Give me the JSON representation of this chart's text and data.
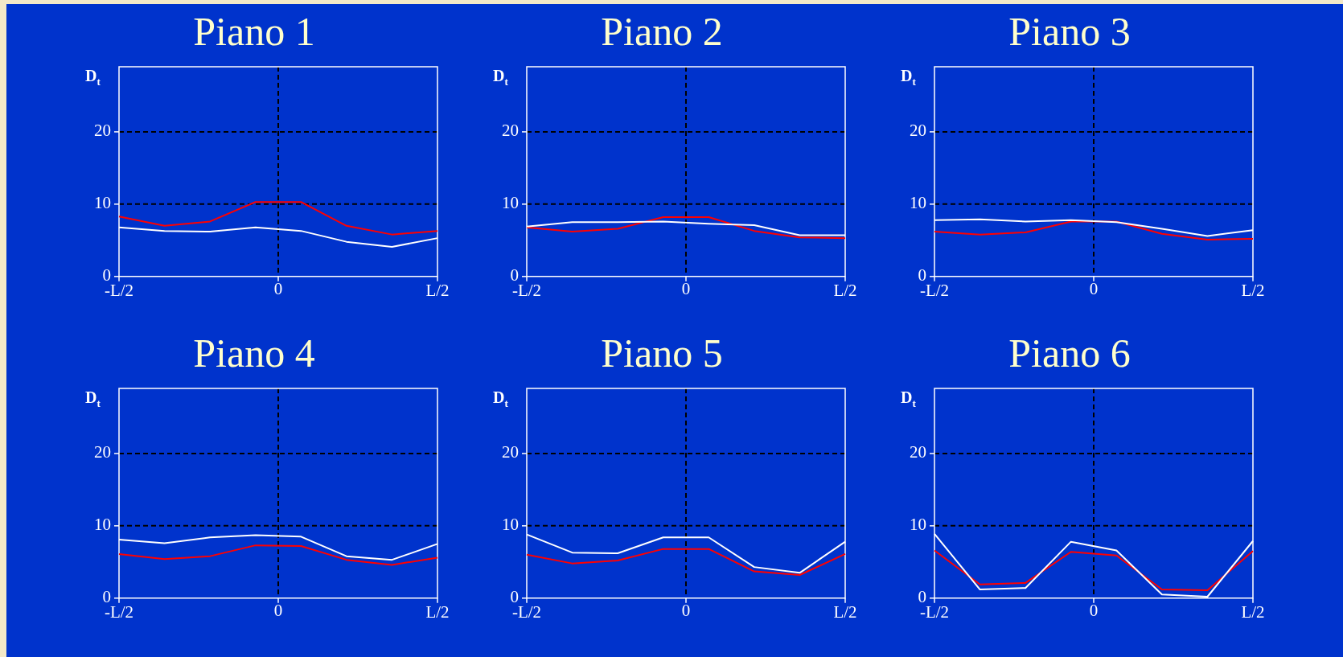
{
  "chart_data": [
    {
      "type": "line",
      "title": "Piano 1",
      "ylabel": "D$_{t}$",
      "categories": [
        "-L/2",
        null,
        null,
        null,
        null,
        null,
        null,
        "L/2"
      ],
      "ylim": [
        0,
        29
      ],
      "yticks": [
        0,
        10,
        20
      ],
      "grid": "y",
      "ref_lines": [
        {
          "axis": "x",
          "label": "0"
        }
      ],
      "marker": "none",
      "series": [
        {
          "color": "#ffffff",
          "values": [
            6.8,
            6.3,
            6.2,
            6.8,
            6.3,
            4.8,
            4.1,
            5.3
          ]
        },
        {
          "color": "#ff0000",
          "values": [
            8.3,
            7.0,
            7.6,
            10.3,
            10.3,
            7.0,
            5.8,
            6.3
          ]
        }
      ]
    },
    {
      "type": "line",
      "title": "Piano 2",
      "ylabel": "D$_{t}$",
      "categories": [
        "-L/2",
        null,
        null,
        null,
        null,
        null,
        null,
        "L/2"
      ],
      "ylim": [
        0,
        29
      ],
      "yticks": [
        0,
        10,
        20
      ],
      "grid": "y",
      "ref_lines": [
        {
          "axis": "x",
          "label": "0"
        }
      ],
      "marker": "none",
      "series": [
        {
          "color": "#ffffff",
          "values": [
            6.9,
            7.5,
            7.5,
            7.6,
            7.3,
            7.1,
            5.7,
            5.7
          ]
        },
        {
          "color": "#ff0000",
          "values": [
            6.8,
            6.2,
            6.6,
            8.2,
            8.2,
            6.3,
            5.4,
            5.3
          ]
        }
      ]
    },
    {
      "type": "line",
      "title": "Piano 3",
      "ylabel": "D$_{t}$",
      "categories": [
        "-L/2",
        null,
        null,
        null,
        null,
        null,
        null,
        "L/2"
      ],
      "ylim": [
        0,
        29
      ],
      "yticks": [
        0,
        10,
        20
      ],
      "grid": "y",
      "ref_lines": [
        {
          "axis": "x",
          "label": "0"
        }
      ],
      "marker": "none",
      "series": [
        {
          "color": "#ffffff",
          "values": [
            7.8,
            7.9,
            7.6,
            7.8,
            7.5,
            6.6,
            5.6,
            6.4
          ]
        },
        {
          "color": "#ff0000",
          "values": [
            6.2,
            5.8,
            6.1,
            7.6,
            7.6,
            5.9,
            5.1,
            5.2
          ]
        }
      ]
    },
    {
      "type": "line",
      "title": "Piano 4",
      "ylabel": "D$_{t}$",
      "categories": [
        "-L/2",
        null,
        null,
        null,
        null,
        null,
        null,
        "L/2"
      ],
      "ylim": [
        0,
        29
      ],
      "yticks": [
        0,
        10,
        20
      ],
      "grid": "y",
      "ref_lines": [
        {
          "axis": "x",
          "label": "0"
        }
      ],
      "marker": "none",
      "series": [
        {
          "color": "#ffffff",
          "values": [
            8.1,
            7.6,
            8.4,
            8.7,
            8.5,
            5.8,
            5.3,
            7.5
          ]
        },
        {
          "color": "#ff0000",
          "values": [
            6.1,
            5.4,
            5.8,
            7.3,
            7.2,
            5.3,
            4.6,
            5.6
          ]
        }
      ]
    },
    {
      "type": "line",
      "title": "Piano 5",
      "ylabel": "D$_{t}$",
      "categories": [
        "-L/2",
        null,
        null,
        null,
        null,
        null,
        null,
        "L/2"
      ],
      "ylim": [
        0,
        29
      ],
      "yticks": [
        0,
        10,
        20
      ],
      "grid": "y",
      "ref_lines": [
        {
          "axis": "x",
          "label": "0"
        }
      ],
      "marker": "none",
      "series": [
        {
          "color": "#ffffff",
          "values": [
            8.8,
            6.3,
            6.2,
            8.4,
            8.4,
            4.3,
            3.5,
            7.8
          ]
        },
        {
          "color": "#ff0000",
          "values": [
            6.0,
            4.8,
            5.2,
            6.8,
            6.8,
            3.7,
            3.2,
            6.1
          ]
        }
      ]
    },
    {
      "type": "line",
      "title": "Piano 6",
      "ylabel": "D$_{t}$",
      "categories": [
        "-L/2",
        null,
        null,
        null,
        null,
        null,
        null,
        "L/2"
      ],
      "ylim": [
        0,
        29
      ],
      "yticks": [
        0,
        10,
        20
      ],
      "grid": "y",
      "ref_lines": [
        {
          "axis": "x",
          "label": "0"
        }
      ],
      "marker": "none",
      "series": [
        {
          "color": "#ffffff",
          "values": [
            8.9,
            1.2,
            1.4,
            7.8,
            6.6,
            0.5,
            0.2,
            7.9
          ]
        },
        {
          "color": "#ff0000",
          "values": [
            6.6,
            1.9,
            2.1,
            6.4,
            5.9,
            1.2,
            1.1,
            6.5
          ]
        }
      ]
    }
  ]
}
